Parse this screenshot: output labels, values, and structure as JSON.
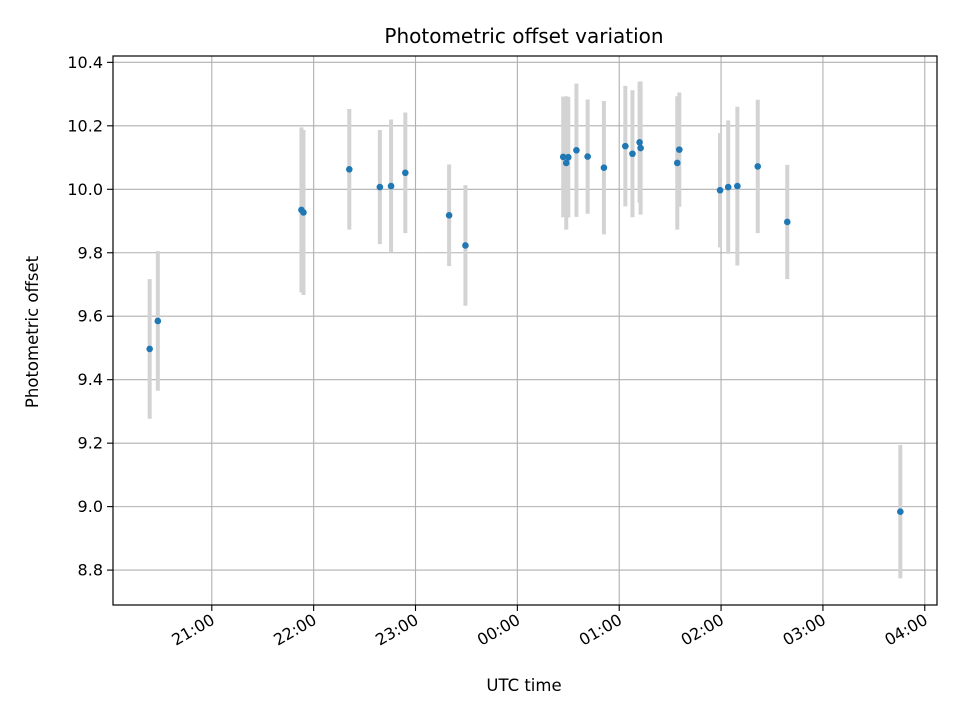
{
  "chart_data": {
    "type": "scatter",
    "title": "Photometric offset variation",
    "xlabel": "UTC time",
    "ylabel": "Photometric offset",
    "x_unit": "UTC time (hours past midnight of the first night; values >= 24 are the next day)",
    "xlim": [
      20.03,
      28.12
    ],
    "ylim": [
      8.69,
      10.42
    ],
    "grid": true,
    "x_ticks": [
      {
        "value": 21,
        "label": "21:00"
      },
      {
        "value": 22,
        "label": "22:00"
      },
      {
        "value": 23,
        "label": "23:00"
      },
      {
        "value": 24,
        "label": "00:00"
      },
      {
        "value": 25,
        "label": "01:00"
      },
      {
        "value": 26,
        "label": "02:00"
      },
      {
        "value": 27,
        "label": "03:00"
      },
      {
        "value": 28,
        "label": "04:00"
      }
    ],
    "y_ticks": [
      {
        "value": 8.8,
        "label": "8.8"
      },
      {
        "value": 9.0,
        "label": "9.0"
      },
      {
        "value": 9.2,
        "label": "9.2"
      },
      {
        "value": 9.4,
        "label": "9.4"
      },
      {
        "value": 9.6,
        "label": "9.6"
      },
      {
        "value": 9.8,
        "label": "9.8"
      },
      {
        "value": 10.0,
        "label": "10.0"
      },
      {
        "value": 10.2,
        "label": "10.2"
      },
      {
        "value": 10.4,
        "label": "10.4"
      }
    ],
    "point_color": "#1f77b4",
    "errorbar_color": "#d3d3d3",
    "points": [
      {
        "x": 20.39,
        "y": 9.497,
        "err": 0.22
      },
      {
        "x": 20.47,
        "y": 9.585,
        "err": 0.22
      },
      {
        "x": 21.88,
        "y": 9.935,
        "err": 0.26
      },
      {
        "x": 21.9,
        "y": 9.927,
        "err": 0.26
      },
      {
        "x": 22.35,
        "y": 10.063,
        "err": 0.19
      },
      {
        "x": 22.65,
        "y": 10.007,
        "err": 0.18
      },
      {
        "x": 22.76,
        "y": 10.01,
        "err": 0.21
      },
      {
        "x": 22.9,
        "y": 10.052,
        "err": 0.19
      },
      {
        "x": 23.33,
        "y": 9.918,
        "err": 0.16
      },
      {
        "x": 23.49,
        "y": 9.823,
        "err": 0.19
      },
      {
        "x": 24.45,
        "y": 10.102,
        "err": 0.19
      },
      {
        "x": 24.48,
        "y": 10.083,
        "err": 0.21
      },
      {
        "x": 24.5,
        "y": 10.101,
        "err": 0.19
      },
      {
        "x": 24.58,
        "y": 10.123,
        "err": 0.21
      },
      {
        "x": 24.69,
        "y": 10.103,
        "err": 0.18
      },
      {
        "x": 24.85,
        "y": 10.068,
        "err": 0.21
      },
      {
        "x": 25.06,
        "y": 10.136,
        "err": 0.19
      },
      {
        "x": 25.13,
        "y": 10.112,
        "err": 0.2
      },
      {
        "x": 25.2,
        "y": 10.148,
        "err": 0.19
      },
      {
        "x": 25.21,
        "y": 10.13,
        "err": 0.21
      },
      {
        "x": 25.57,
        "y": 10.083,
        "err": 0.21
      },
      {
        "x": 25.59,
        "y": 10.125,
        "err": 0.18
      },
      {
        "x": 25.99,
        "y": 9.997,
        "err": 0.18
      },
      {
        "x": 26.07,
        "y": 10.007,
        "err": 0.21
      },
      {
        "x": 26.16,
        "y": 10.01,
        "err": 0.25
      },
      {
        "x": 26.36,
        "y": 10.072,
        "err": 0.21
      },
      {
        "x": 26.65,
        "y": 9.897,
        "err": 0.18
      },
      {
        "x": 27.76,
        "y": 8.984,
        "err": 0.21
      }
    ]
  }
}
